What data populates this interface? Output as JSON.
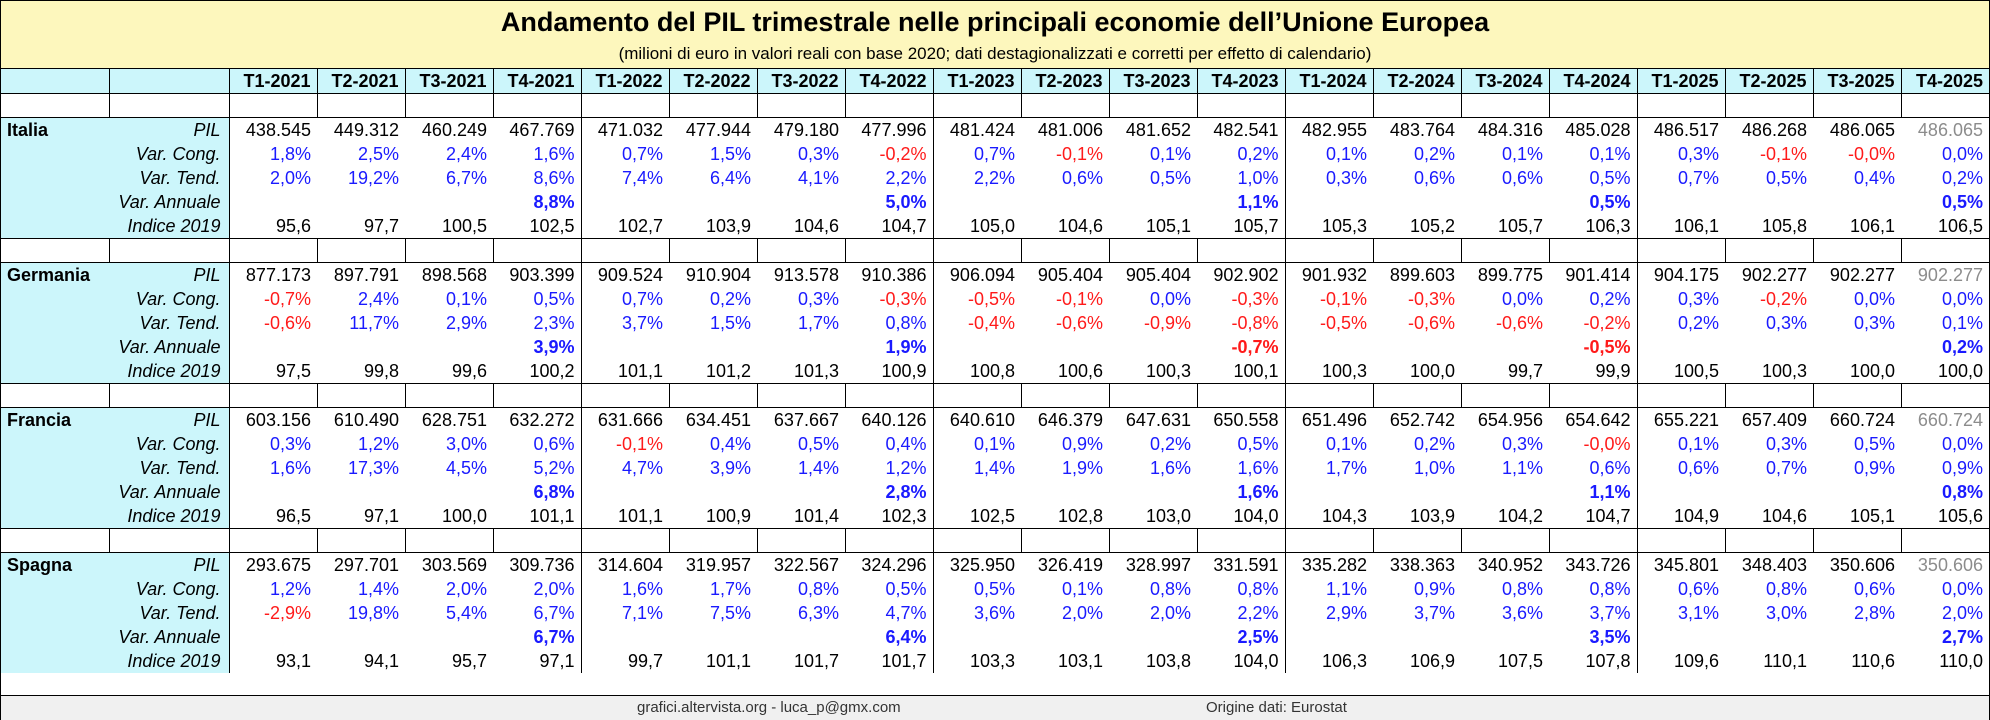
{
  "title": "Andamento del PIL trimestrale nelle principali economie dell’Unione Europea",
  "subtitle": "(milioni di euro in valori reali con base 2020; dati destagionalizzati e corretti per effetto di calendario)",
  "quarters": [
    "T1-2021",
    "T2-2021",
    "T3-2021",
    "T4-2021",
    "T1-2022",
    "T2-2022",
    "T3-2022",
    "T4-2022",
    "T1-2023",
    "T2-2023",
    "T3-2023",
    "T4-2023",
    "T1-2024",
    "T2-2024",
    "T3-2024",
    "T4-2024",
    "T1-2025",
    "T2-2025",
    "T3-2025",
    "T4-2025"
  ],
  "metric_labels": [
    "PIL",
    "Var. Cong.",
    "Var. Tend.",
    "Var. Annuale",
    "Indice 2019"
  ],
  "countries": [
    {
      "name": "Italia",
      "pil": [
        "438.545",
        "449.312",
        "460.249",
        "467.769",
        "471.032",
        "477.944",
        "479.180",
        "477.996",
        "481.424",
        "481.006",
        "481.652",
        "482.541",
        "482.955",
        "483.764",
        "484.316",
        "485.028",
        "486.517",
        "486.268",
        "486.065",
        "486.065"
      ],
      "var_cong": [
        "1,8%",
        "2,5%",
        "2,4%",
        "1,6%",
        "0,7%",
        "1,5%",
        "0,3%",
        "-0,2%",
        "0,7%",
        "-0,1%",
        "0,1%",
        "0,2%",
        "0,1%",
        "0,2%",
        "0,1%",
        "0,1%",
        "0,3%",
        "-0,1%",
        "-0,0%",
        "0,0%"
      ],
      "var_tend": [
        "2,0%",
        "19,2%",
        "6,7%",
        "8,6%",
        "7,4%",
        "6,4%",
        "4,1%",
        "2,2%",
        "2,2%",
        "0,6%",
        "0,5%",
        "1,0%",
        "0,3%",
        "0,6%",
        "0,6%",
        "0,5%",
        "0,7%",
        "0,5%",
        "0,4%",
        "0,2%"
      ],
      "var_annuale": [
        "",
        "",
        "",
        "8,8%",
        "",
        "",
        "",
        "5,0%",
        "",
        "",
        "",
        "1,1%",
        "",
        "",
        "",
        "0,5%",
        "",
        "",
        "",
        "0,5%"
      ],
      "indice_2019": [
        "95,6",
        "97,7",
        "100,5",
        "102,5",
        "102,7",
        "103,9",
        "104,6",
        "104,7",
        "105,0",
        "104,6",
        "105,1",
        "105,7",
        "105,3",
        "105,2",
        "105,7",
        "106,3",
        "106,1",
        "105,8",
        "106,1",
        "106,5"
      ]
    },
    {
      "name": "Germania",
      "pil": [
        "877.173",
        "897.791",
        "898.568",
        "903.399",
        "909.524",
        "910.904",
        "913.578",
        "910.386",
        "906.094",
        "905.404",
        "905.404",
        "902.902",
        "901.932",
        "899.603",
        "899.775",
        "901.414",
        "904.175",
        "902.277",
        "902.277",
        "902.277"
      ],
      "var_cong": [
        "-0,7%",
        "2,4%",
        "0,1%",
        "0,5%",
        "0,7%",
        "0,2%",
        "0,3%",
        "-0,3%",
        "-0,5%",
        "-0,1%",
        "0,0%",
        "-0,3%",
        "-0,1%",
        "-0,3%",
        "0,0%",
        "0,2%",
        "0,3%",
        "-0,2%",
        "0,0%",
        "0,0%"
      ],
      "var_tend": [
        "-0,6%",
        "11,7%",
        "2,9%",
        "2,3%",
        "3,7%",
        "1,5%",
        "1,7%",
        "0,8%",
        "-0,4%",
        "-0,6%",
        "-0,9%",
        "-0,8%",
        "-0,5%",
        "-0,6%",
        "-0,6%",
        "-0,2%",
        "0,2%",
        "0,3%",
        "0,3%",
        "0,1%"
      ],
      "var_annuale": [
        "",
        "",
        "",
        "3,9%",
        "",
        "",
        "",
        "1,9%",
        "",
        "",
        "",
        "-0,7%",
        "",
        "",
        "",
        "-0,5%",
        "",
        "",
        "",
        "0,2%"
      ],
      "indice_2019": [
        "97,5",
        "99,8",
        "99,6",
        "100,2",
        "101,1",
        "101,2",
        "101,3",
        "100,9",
        "100,8",
        "100,6",
        "100,3",
        "100,1",
        "100,3",
        "100,0",
        "99,7",
        "99,9",
        "100,5",
        "100,3",
        "100,0",
        "100,0"
      ]
    },
    {
      "name": "Francia",
      "pil": [
        "603.156",
        "610.490",
        "628.751",
        "632.272",
        "631.666",
        "634.451",
        "637.667",
        "640.126",
        "640.610",
        "646.379",
        "647.631",
        "650.558",
        "651.496",
        "652.742",
        "654.956",
        "654.642",
        "655.221",
        "657.409",
        "660.724",
        "660.724"
      ],
      "var_cong": [
        "0,3%",
        "1,2%",
        "3,0%",
        "0,6%",
        "-0,1%",
        "0,4%",
        "0,5%",
        "0,4%",
        "0,1%",
        "0,9%",
        "0,2%",
        "0,5%",
        "0,1%",
        "0,2%",
        "0,3%",
        "-0,0%",
        "0,1%",
        "0,3%",
        "0,5%",
        "0,0%"
      ],
      "var_tend": [
        "1,6%",
        "17,3%",
        "4,5%",
        "5,2%",
        "4,7%",
        "3,9%",
        "1,4%",
        "1,2%",
        "1,4%",
        "1,9%",
        "1,6%",
        "1,6%",
        "1,7%",
        "1,0%",
        "1,1%",
        "0,6%",
        "0,6%",
        "0,7%",
        "0,9%",
        "0,9%"
      ],
      "var_annuale": [
        "",
        "",
        "",
        "6,8%",
        "",
        "",
        "",
        "2,8%",
        "",
        "",
        "",
        "1,6%",
        "",
        "",
        "",
        "1,1%",
        "",
        "",
        "",
        "0,8%"
      ],
      "indice_2019": [
        "96,5",
        "97,1",
        "100,0",
        "101,1",
        "101,1",
        "100,9",
        "101,4",
        "102,3",
        "102,5",
        "102,8",
        "103,0",
        "104,0",
        "104,3",
        "103,9",
        "104,2",
        "104,7",
        "104,9",
        "104,6",
        "105,1",
        "105,6"
      ]
    },
    {
      "name": "Spagna",
      "pil": [
        "293.675",
        "297.701",
        "303.569",
        "309.736",
        "314.604",
        "319.957",
        "322.567",
        "324.296",
        "325.950",
        "326.419",
        "328.997",
        "331.591",
        "335.282",
        "338.363",
        "340.952",
        "343.726",
        "345.801",
        "348.403",
        "350.606",
        "350.606"
      ],
      "var_cong": [
        "1,2%",
        "1,4%",
        "2,0%",
        "2,0%",
        "1,6%",
        "1,7%",
        "0,8%",
        "0,5%",
        "0,5%",
        "0,1%",
        "0,8%",
        "0,8%",
        "1,1%",
        "0,9%",
        "0,8%",
        "0,8%",
        "0,6%",
        "0,8%",
        "0,6%",
        "0,0%"
      ],
      "var_tend": [
        "-2,9%",
        "19,8%",
        "5,4%",
        "6,7%",
        "7,1%",
        "7,5%",
        "6,3%",
        "4,7%",
        "3,6%",
        "2,0%",
        "2,0%",
        "2,2%",
        "2,9%",
        "3,7%",
        "3,6%",
        "3,7%",
        "3,1%",
        "3,0%",
        "2,8%",
        "2,0%"
      ],
      "var_annuale": [
        "",
        "",
        "",
        "6,7%",
        "",
        "",
        "",
        "6,4%",
        "",
        "",
        "",
        "2,5%",
        "",
        "",
        "",
        "3,5%",
        "",
        "",
        "",
        "2,7%"
      ],
      "indice_2019": [
        "93,1",
        "94,1",
        "95,7",
        "97,1",
        "99,7",
        "101,1",
        "101,7",
        "101,7",
        "103,3",
        "103,1",
        "103,8",
        "104,0",
        "106,3",
        "106,9",
        "107,5",
        "107,8",
        "109,6",
        "110,1",
        "110,6",
        "110,0"
      ]
    }
  ],
  "colors": {
    "positive": "#1a1aff",
    "negative": "#ff1a1a",
    "estimate": "#8c8c8c",
    "header_bg": "#ccf6fb",
    "title_bg": "#fdf7bd"
  },
  "footer": {
    "credit": "grafici.altervista.org - luca_p@gmx.com",
    "source": "Origine dati: Eurostat"
  }
}
